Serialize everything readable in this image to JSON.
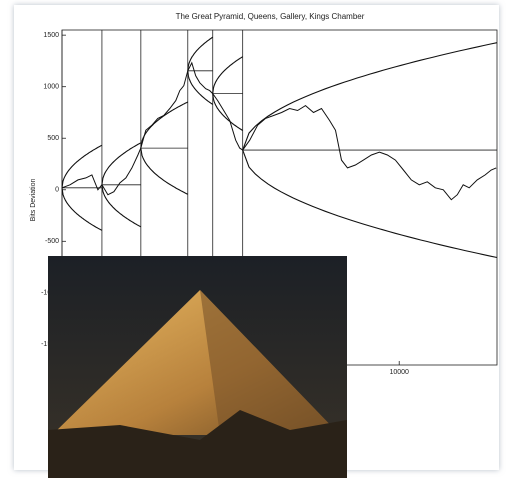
{
  "chart_data": {
    "type": "line",
    "title": "The Great Pyramid, Queens, Gallery, Kings Chamber",
    "ylabel": "Bits Deviation",
    "x": [
      0,
      237,
      474,
      710,
      888,
      1066,
      1184,
      1362,
      1539,
      1717,
      1894,
      2072,
      2250,
      2338,
      2486,
      2664,
      2842,
      3019,
      3197,
      3374,
      3493,
      3611,
      3730,
      3848,
      3966,
      4085,
      4262,
      4381,
      4470,
      4618,
      4795,
      4973,
      5150,
      5269,
      5358,
      5565,
      5802,
      6038,
      6275,
      6512,
      6749,
      6986,
      7222,
      7459,
      7696,
      7933,
      8110,
      8288,
      8466,
      8702,
      8939,
      9176,
      9413,
      9650,
      9886,
      10123,
      10360,
      10597,
      10834,
      11070,
      11307,
      11544,
      11722,
      11899,
      12077,
      12314,
      12550,
      12728,
      12876
    ],
    "values": [
      19,
      48,
      96,
      115,
      144,
      0,
      48,
      -48,
      -19,
      67,
      115,
      212,
      337,
      404,
      577,
      625,
      692,
      721,
      788,
      865,
      962,
      1010,
      1154,
      1231,
      1106,
      1038,
      981,
      962,
      933,
      865,
      769,
      673,
      481,
      404,
      385,
      481,
      625,
      692,
      721,
      750,
      788,
      769,
      817,
      750,
      788,
      673,
      577,
      288,
      212,
      240,
      288,
      337,
      365,
      337,
      288,
      192,
      96,
      48,
      77,
      19,
      0,
      -96,
      -48,
      48,
      19,
      96,
      144,
      192,
      212
    ],
    "color": "#111111",
    "segments": [
      0,
      1184,
      2338,
      3730,
      4470,
      5358
    ],
    "envelope_k": 12,
    "xlim": [
      0,
      12900
    ],
    "ylim": [
      -1700,
      1550
    ],
    "xticks": [
      10000
    ],
    "yticks": [
      -1500,
      -1000,
      -500,
      0,
      500,
      1000,
      1500
    ]
  }
}
